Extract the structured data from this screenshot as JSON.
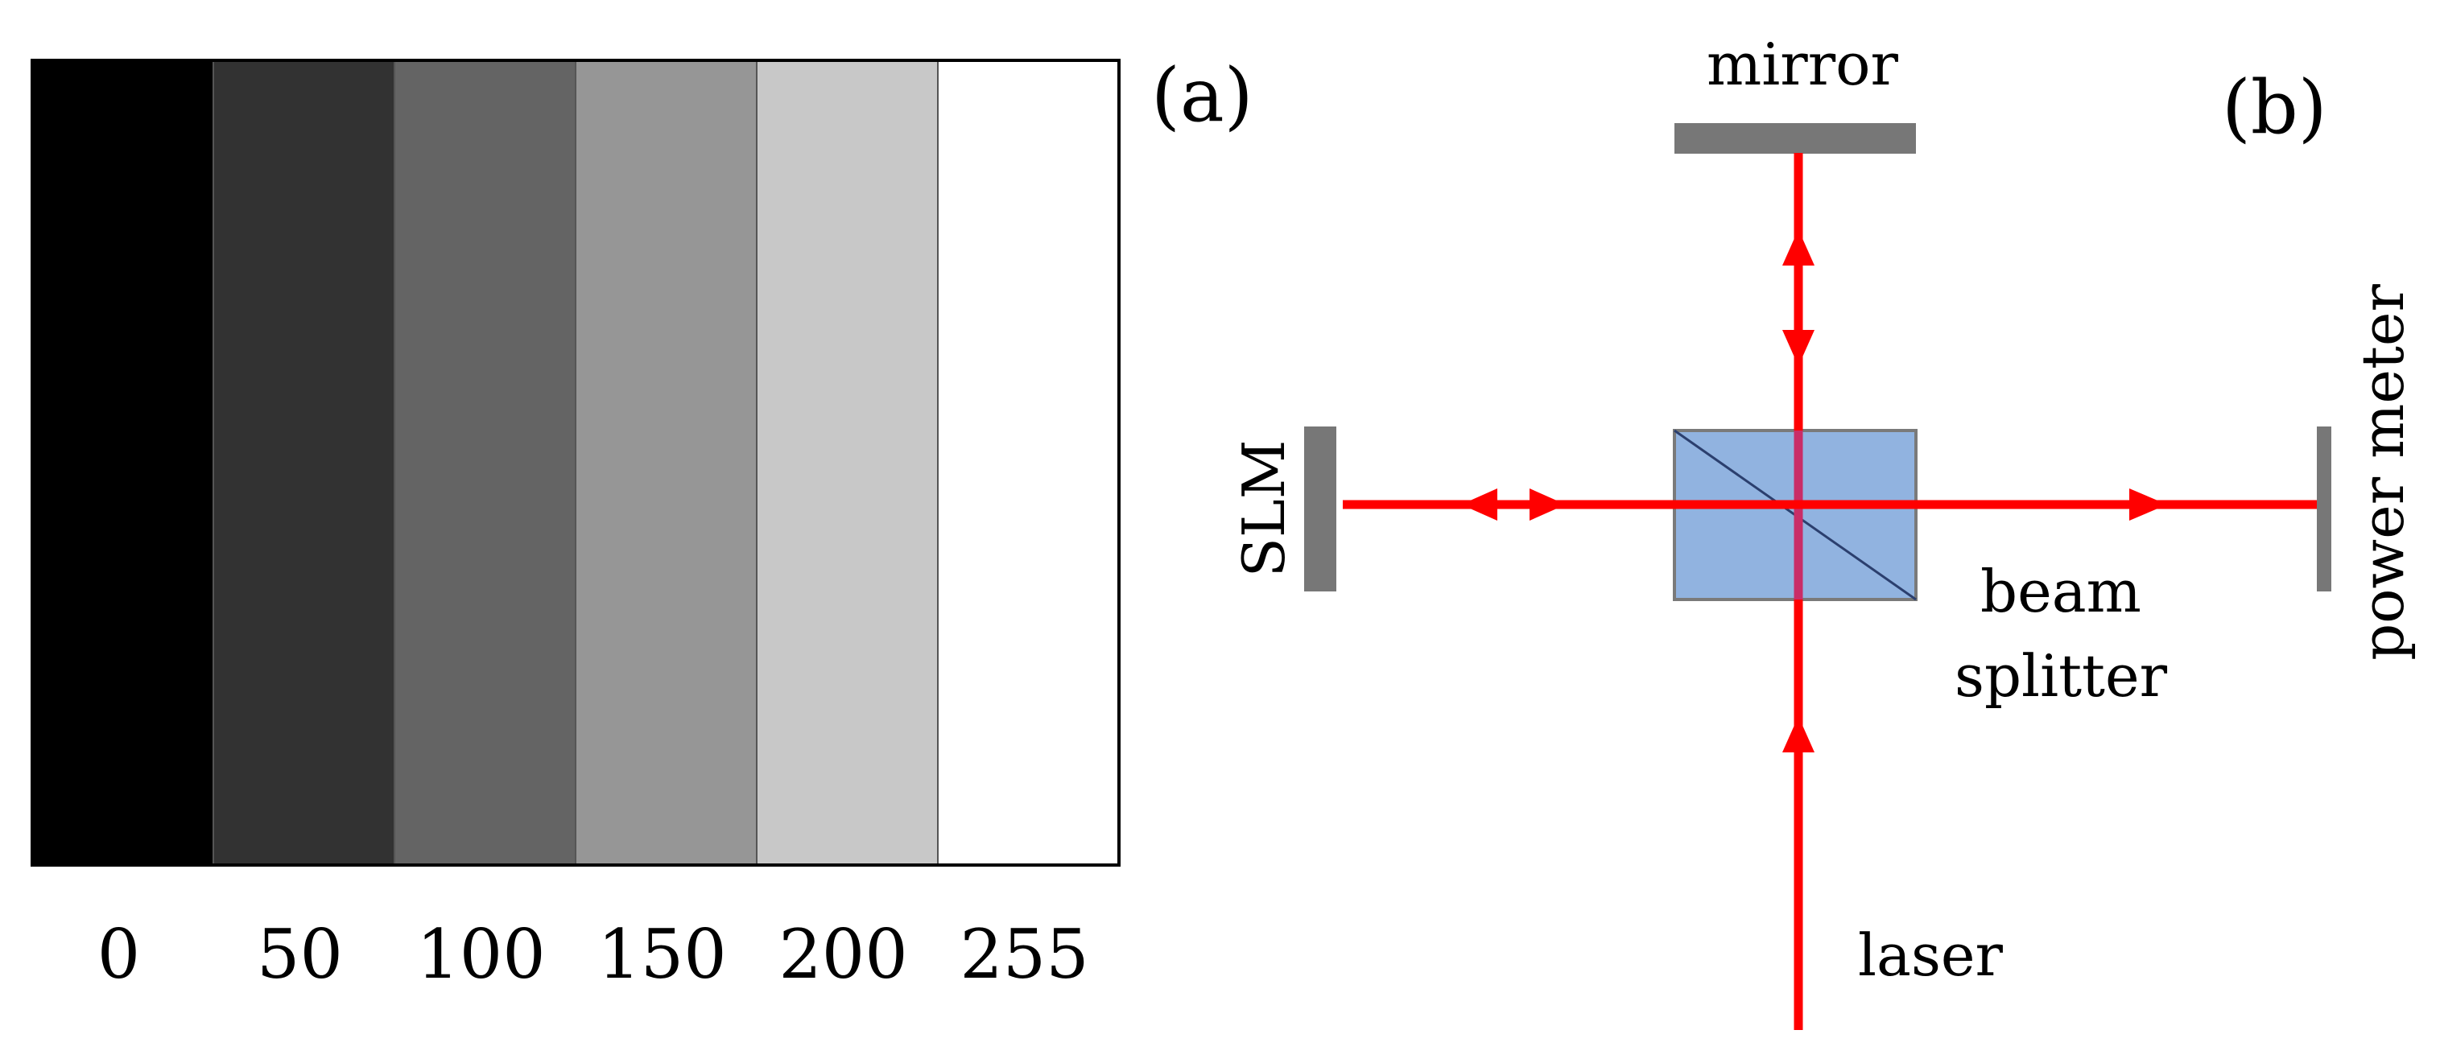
{
  "panel_a": {
    "label": "(a)",
    "grayscale_levels": [
      {
        "value": 0,
        "label": "0"
      },
      {
        "value": 50,
        "label": "50"
      },
      {
        "value": 100,
        "label": "100"
      },
      {
        "value": 150,
        "label": "150"
      },
      {
        "value": 200,
        "label": "200"
      },
      {
        "value": 255,
        "label": "255"
      }
    ]
  },
  "panel_b": {
    "label": "(b)",
    "mirror_label": "mirror",
    "slm_label": "SLM",
    "power_meter_label": "power meter",
    "beam_splitter_label_line1": "beam",
    "beam_splitter_label_line2": "splitter",
    "laser_label": "laser"
  },
  "colors": {
    "beam": "#ff0000",
    "beam_splitter_fill": "#91b3e0",
    "beam_splitter_stroke": "#7a7a7a",
    "optic": "#777777",
    "outline": "#000000"
  }
}
